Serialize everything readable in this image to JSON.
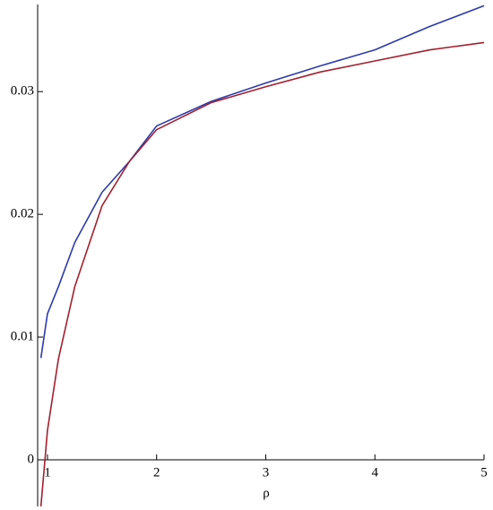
{
  "chart_data": {
    "type": "line",
    "x_label": "ρ",
    "x": [
      0.94,
      1,
      1.1,
      1.25,
      1.5,
      1.75,
      2,
      2.5,
      3,
      3.5,
      4,
      4.5,
      5
    ],
    "series": [
      {
        "color": "#2b3aae",
        "values": [
          0.0083,
          0.0119,
          0.0141,
          0.0177,
          0.0218,
          0.0243,
          0.0272,
          0.0292,
          0.0307,
          0.0321,
          0.0334,
          0.0353,
          0.037
        ]
      },
      {
        "color": "#a31f2e",
        "values": [
          -0.0038,
          0.0024,
          0.0082,
          0.0141,
          0.0207,
          0.0243,
          0.0269,
          0.0291,
          0.0304,
          0.0316,
          0.0325,
          0.0334,
          0.034
        ]
      }
    ],
    "xlim": [
      0.91,
      5
    ],
    "ylim": [
      -0.0038,
      0.0371
    ],
    "xticks": [
      1,
      2,
      3,
      4,
      5
    ],
    "yticks": [
      0,
      0.01,
      0.02,
      0.03
    ]
  }
}
